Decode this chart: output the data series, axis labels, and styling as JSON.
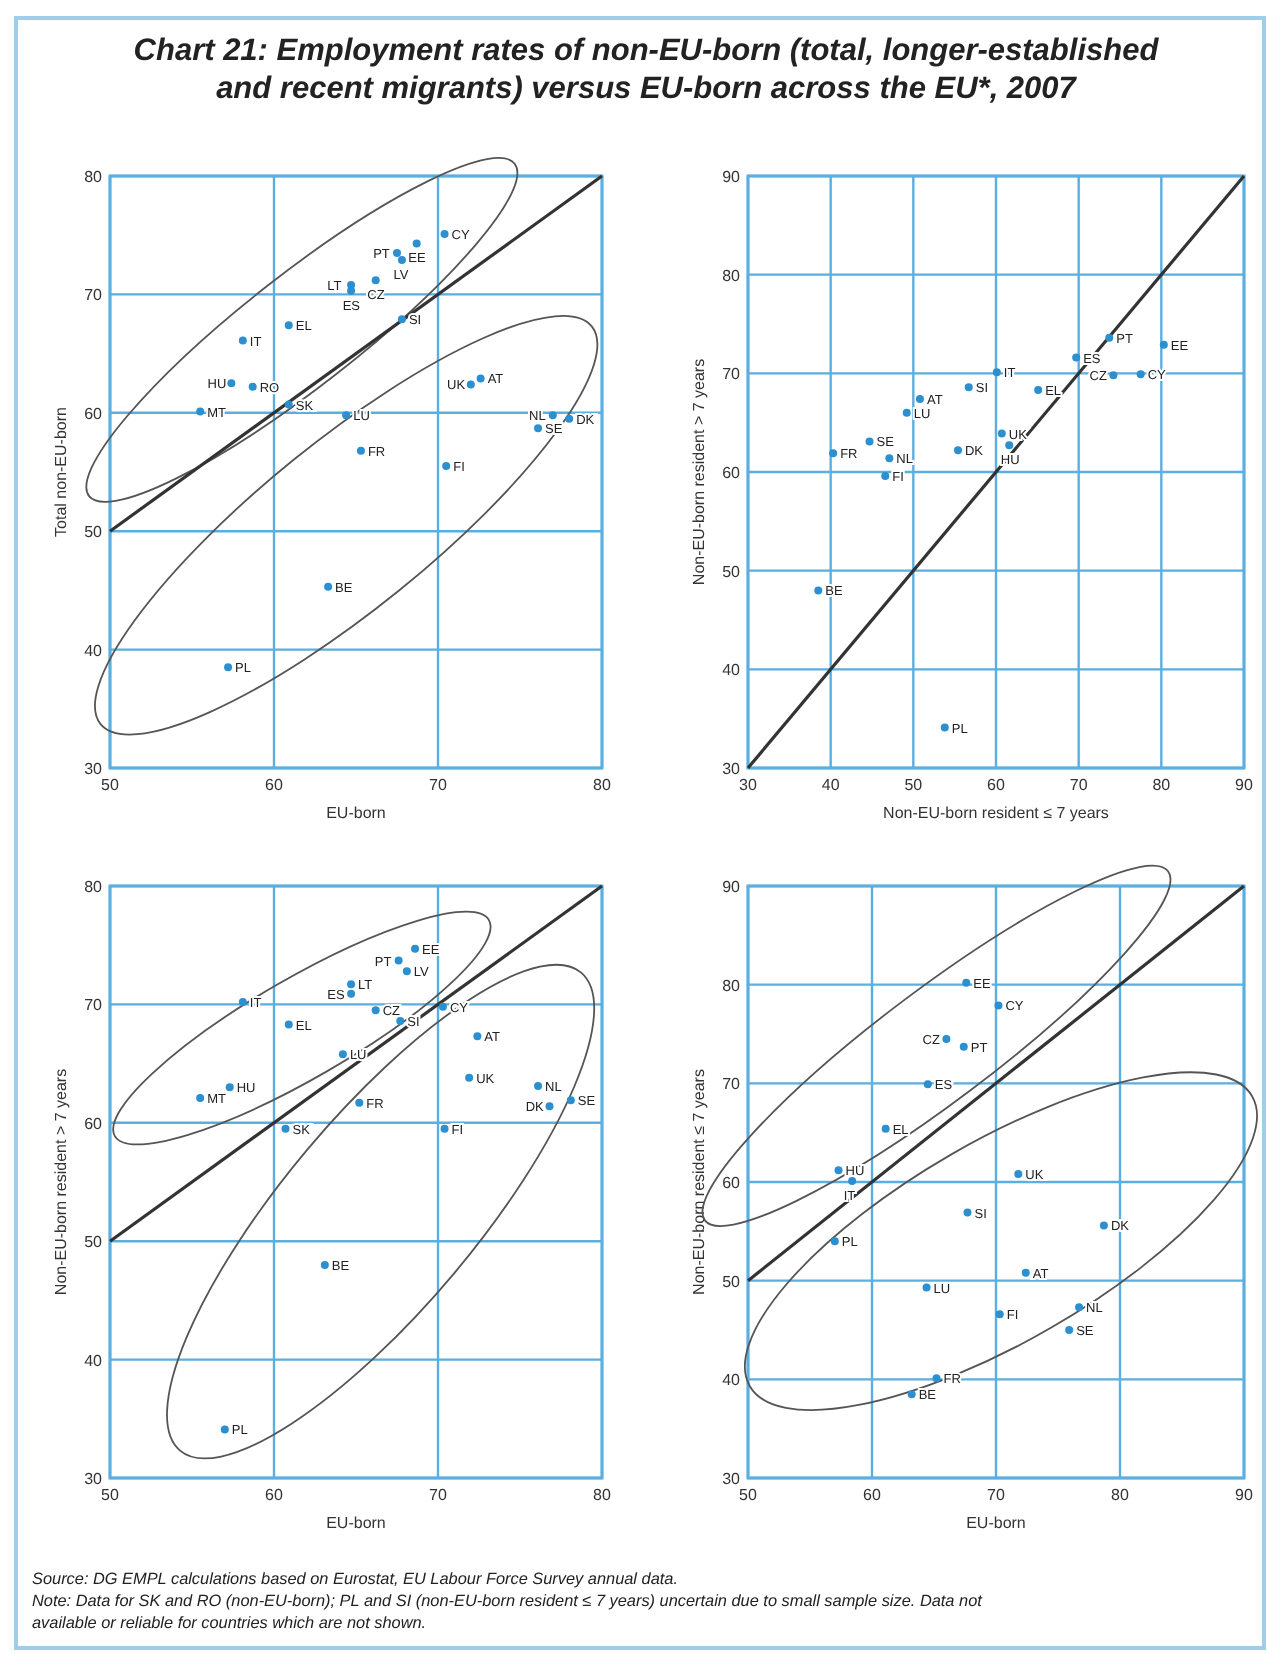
{
  "chart_data": [
    {
      "type": "scatter",
      "title": "Chart 21: Employment rates of non-EU-born (total, longer-established and recent migrants) versus EU-born across the EU*, 2007",
      "xlabel": "EU-born",
      "ylabel": "Total non-EU-born",
      "xlim": [
        50,
        80
      ],
      "ylim": [
        30,
        80
      ],
      "xticks": [
        50,
        60,
        70,
        80
      ],
      "yticks": [
        30,
        40,
        50,
        60,
        70,
        80
      ],
      "grid": true,
      "series": [
        {
          "color": "#2b8fd0",
          "x": [
            70.4,
            68.7,
            67.5,
            67.8,
            66.2,
            64.7,
            64.7,
            67.8,
            60.9,
            58.1,
            57.4,
            58.7,
            60.9,
            55.5,
            64.4,
            65.3,
            72.6,
            72.0,
            77.0,
            78.0,
            76.1,
            70.5,
            63.3,
            57.2
          ],
          "values": [
            75.1,
            74.3,
            73.5,
            72.9,
            71.2,
            70.8,
            70.3,
            67.9,
            67.4,
            66.1,
            62.5,
            62.2,
            60.7,
            60.1,
            59.8,
            56.8,
            62.9,
            62.4,
            59.8,
            59.5,
            58.7,
            55.5,
            45.3,
            38.5
          ],
          "value_labels": [
            "CY",
            "EE",
            "PT",
            "LV",
            "CZ",
            "LT",
            "ES",
            "SI",
            "EL",
            "IT",
            "HU",
            "RO",
            "SK",
            "MT",
            "LU",
            "FR",
            "AT",
            "UK",
            "NL",
            "DK",
            "SE",
            "FI",
            "BE",
            "PL"
          ]
        },
        {
          "type": "line",
          "color": "#333333",
          "x": [
            50,
            80
          ],
          "values": [
            50,
            80
          ]
        }
      ]
    },
    {
      "type": "scatter",
      "xlabel": "Non-EU-born resident ≤ 7 years",
      "ylabel": "Non-EU-born resident > 7 years",
      "xlim": [
        30,
        90
      ],
      "ylim": [
        30,
        90
      ],
      "xticks": [
        30,
        40,
        50,
        60,
        70,
        80,
        90
      ],
      "yticks": [
        30,
        40,
        50,
        60,
        70,
        80,
        90
      ],
      "grid": true,
      "series": [
        {
          "color": "#2b8fd0",
          "x": [
            80.3,
            77.5,
            73.7,
            69.7,
            74.2,
            65.1,
            60.1,
            56.7,
            60.7,
            61.6,
            55.4,
            50.8,
            49.2,
            44.7,
            47.1,
            40.3,
            46.6,
            38.5,
            53.8
          ],
          "values": [
            72.9,
            69.9,
            73.6,
            71.6,
            69.8,
            68.3,
            70.1,
            68.6,
            63.9,
            62.7,
            62.2,
            67.4,
            66.0,
            63.1,
            61.4,
            61.9,
            59.6,
            48.0,
            34.1
          ],
          "value_labels": [
            "EE",
            "CY",
            "PT",
            "ES",
            "CZ",
            "EL",
            "IT",
            "SI",
            "UK",
            "HU",
            "DK",
            "AT",
            "LU",
            "SE",
            "NL",
            "FR",
            "FI",
            "BE",
            "PL"
          ]
        },
        {
          "type": "line",
          "color": "#333333",
          "x": [
            30,
            90
          ],
          "values": [
            30,
            90
          ]
        }
      ]
    },
    {
      "type": "scatter",
      "xlabel": "EU-born",
      "ylabel": "Non-EU-born resident > 7 years",
      "xlim": [
        50,
        80
      ],
      "ylim": [
        30,
        80
      ],
      "xticks": [
        50,
        60,
        70,
        80
      ],
      "yticks": [
        30,
        40,
        50,
        60,
        70,
        80
      ],
      "grid": true,
      "series": [
        {
          "color": "#2b8fd0",
          "x": [
            68.6,
            67.6,
            68.1,
            64.7,
            66.2,
            64.7,
            67.7,
            70.3,
            58.1,
            60.9,
            64.2,
            55.5,
            57.3,
            65.2,
            60.7,
            72.4,
            71.9,
            76.1,
            78.1,
            76.8,
            70.4,
            63.1,
            57.0
          ],
          "values": [
            74.7,
            73.7,
            72.8,
            71.7,
            69.5,
            70.9,
            68.6,
            69.8,
            70.2,
            68.3,
            65.8,
            62.1,
            63.0,
            61.7,
            59.5,
            67.3,
            63.8,
            63.1,
            61.9,
            61.4,
            59.5,
            48.0,
            34.1
          ],
          "value_labels": [
            "EE",
            "PT",
            "LV",
            "LT",
            "CZ",
            "ES",
            "SI",
            "CY",
            "IT",
            "EL",
            "LU",
            "MT",
            "HU",
            "FR",
            "SK",
            "AT",
            "UK",
            "NL",
            "SE",
            "DK",
            "FI",
            "BE",
            "PL"
          ]
        },
        {
          "type": "line",
          "color": "#333333",
          "x": [
            50,
            80
          ],
          "values": [
            50,
            80
          ]
        }
      ]
    },
    {
      "type": "scatter",
      "xlabel": "EU-born",
      "ylabel": "Non-EU-born resident ≤ 7 years",
      "xlim": [
        50,
        90
      ],
      "ylim": [
        30,
        90
      ],
      "xticks": [
        50,
        60,
        70,
        80,
        90
      ],
      "yticks": [
        30,
        40,
        50,
        60,
        70,
        80,
        90
      ],
      "grid": true,
      "annotations": [
        "Source: DG EMPL calculations based on Eurostat, EU Labour Force Survey annual data.",
        "Note: Data for SK and RO (non-EU-born); PL and SI (non-EU-born resident ≤ 7 years) uncertain due to small sample size. Data not available or reliable for countries which are not shown."
      ],
      "series": [
        {
          "color": "#2b8fd0",
          "x": [
            67.6,
            70.2,
            66.0,
            67.4,
            64.5,
            61.1,
            57.3,
            58.4,
            57.0,
            71.8,
            67.7,
            78.7,
            72.4,
            64.4,
            70.3,
            76.7,
            75.9,
            65.2,
            63.2
          ],
          "values": [
            80.2,
            77.9,
            74.5,
            73.7,
            69.9,
            65.4,
            61.2,
            60.1,
            54.0,
            60.8,
            56.9,
            55.6,
            50.8,
            49.3,
            46.6,
            47.3,
            45.0,
            40.1,
            38.5
          ],
          "value_labels": [
            "EE",
            "CY",
            "CZ",
            "PT",
            "ES",
            "EL",
            "HU",
            "IT",
            "PL",
            "UK",
            "SI",
            "DK",
            "AT",
            "LU",
            "FI",
            "NL",
            "SE",
            "FR",
            "BE"
          ]
        },
        {
          "type": "line",
          "color": "#333333",
          "x": [
            50,
            90
          ],
          "values": [
            50,
            90
          ]
        }
      ]
    }
  ]
}
